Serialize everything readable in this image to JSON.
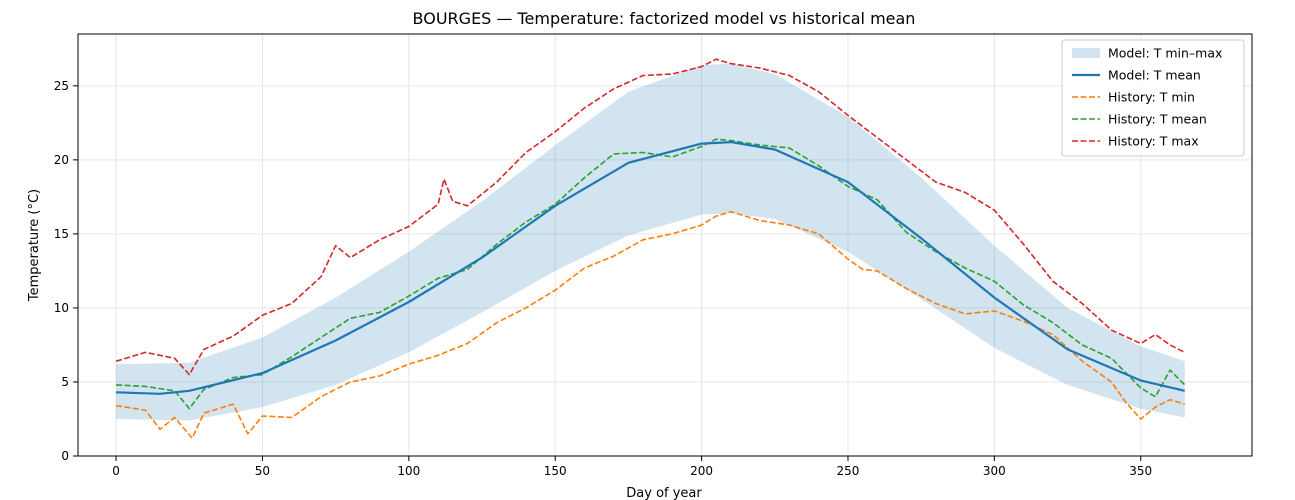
{
  "chart_data": {
    "type": "line",
    "title": "BOURGES — Temperature: factorized model vs historical mean",
    "xlabel": "Day of year",
    "ylabel": "Temperature (°C)",
    "xlim": [
      -13,
      388
    ],
    "ylim": [
      0,
      28.5
    ],
    "xticks": [
      0,
      50,
      100,
      150,
      200,
      250,
      300,
      350
    ],
    "yticks": [
      0,
      5,
      10,
      15,
      20,
      25
    ],
    "grid": true,
    "legend_position": "top-right",
    "band": {
      "name": "Model: T min–max",
      "color": "#1f77b4",
      "x": [
        0,
        25,
        50,
        75,
        100,
        125,
        150,
        175,
        200,
        210,
        225,
        250,
        275,
        300,
        325,
        350,
        365
      ],
      "lower": [
        2.5,
        2.4,
        3.3,
        4.8,
        7.0,
        9.7,
        12.5,
        14.9,
        16.3,
        16.4,
        16.0,
        13.8,
        10.6,
        7.3,
        4.8,
        3.2,
        2.6
      ],
      "upper": [
        6.2,
        6.3,
        8.0,
        10.7,
        13.8,
        17.2,
        21.0,
        24.6,
        26.4,
        26.5,
        25.8,
        22.9,
        18.8,
        14.2,
        10.0,
        7.4,
        6.4
      ]
    },
    "series": [
      {
        "name": "Model: T mean",
        "color": "#1f77b4",
        "style": "solid",
        "x": [
          0,
          15,
          25,
          50,
          75,
          100,
          125,
          150,
          175,
          200,
          210,
          225,
          250,
          275,
          300,
          325,
          350,
          365
        ],
        "values": [
          4.3,
          4.2,
          4.4,
          5.6,
          7.8,
          10.4,
          13.4,
          16.9,
          19.8,
          21.1,
          21.2,
          20.7,
          18.5,
          14.7,
          10.7,
          7.2,
          5.1,
          4.4
        ]
      },
      {
        "name": "History: T min",
        "color": "#ff7f0e",
        "style": "dashed",
        "x": [
          0,
          10,
          15,
          20,
          26,
          30,
          40,
          45,
          50,
          60,
          70,
          80,
          90,
          100,
          110,
          120,
          130,
          140,
          150,
          160,
          170,
          180,
          190,
          200,
          205,
          210,
          220,
          230,
          240,
          250,
          255,
          260,
          270,
          280,
          290,
          300,
          310,
          320,
          330,
          340,
          345,
          350,
          355,
          360,
          365
        ],
        "values": [
          3.4,
          3.1,
          1.8,
          2.6,
          1.2,
          2.9,
          3.5,
          1.5,
          2.7,
          2.6,
          4.0,
          5.0,
          5.4,
          6.2,
          6.8,
          7.6,
          9.0,
          10.0,
          11.2,
          12.7,
          13.5,
          14.6,
          15.0,
          15.6,
          16.2,
          16.5,
          15.9,
          15.6,
          15.0,
          13.3,
          12.6,
          12.5,
          11.3,
          10.3,
          9.6,
          9.8,
          9.1,
          8.2,
          6.4,
          5.0,
          3.6,
          2.5,
          3.3,
          3.8,
          3.5
        ]
      },
      {
        "name": "History: T mean",
        "color": "#2ca02c",
        "style": "dashed",
        "x": [
          0,
          10,
          20,
          25,
          30,
          40,
          50,
          60,
          70,
          80,
          90,
          100,
          110,
          120,
          130,
          140,
          150,
          160,
          170,
          180,
          190,
          200,
          205,
          210,
          220,
          230,
          240,
          250,
          260,
          270,
          280,
          290,
          300,
          310,
          320,
          330,
          340,
          350,
          355,
          360,
          365
        ],
        "values": [
          4.8,
          4.7,
          4.4,
          3.2,
          4.5,
          5.3,
          5.5,
          6.7,
          8.0,
          9.3,
          9.7,
          10.8,
          12.0,
          12.6,
          14.3,
          15.8,
          17.0,
          18.8,
          20.4,
          20.5,
          20.2,
          20.9,
          21.4,
          21.3,
          21.0,
          20.8,
          19.6,
          18.2,
          17.3,
          15.1,
          13.8,
          12.7,
          11.8,
          10.2,
          9.0,
          7.5,
          6.6,
          4.6,
          4.0,
          5.8,
          4.8
        ]
      },
      {
        "name": "History: T max",
        "color": "#d62728",
        "style": "dashed",
        "x": [
          0,
          10,
          20,
          25,
          30,
          40,
          50,
          60,
          70,
          75,
          80,
          90,
          100,
          110,
          112,
          115,
          120,
          130,
          140,
          150,
          160,
          170,
          180,
          190,
          200,
          205,
          210,
          220,
          230,
          240,
          250,
          260,
          270,
          280,
          290,
          300,
          310,
          320,
          330,
          340,
          350,
          355,
          360,
          365
        ],
        "values": [
          6.4,
          7.0,
          6.6,
          5.5,
          7.2,
          8.1,
          9.5,
          10.3,
          12.1,
          14.2,
          13.4,
          14.6,
          15.5,
          17.0,
          18.7,
          17.2,
          16.9,
          18.5,
          20.5,
          21.9,
          23.5,
          24.8,
          25.7,
          25.8,
          26.3,
          26.8,
          26.5,
          26.2,
          25.7,
          24.6,
          23.0,
          21.5,
          20.0,
          18.5,
          17.8,
          16.6,
          14.3,
          11.8,
          10.3,
          8.5,
          7.6,
          8.2,
          7.5,
          7.0
        ]
      }
    ]
  }
}
